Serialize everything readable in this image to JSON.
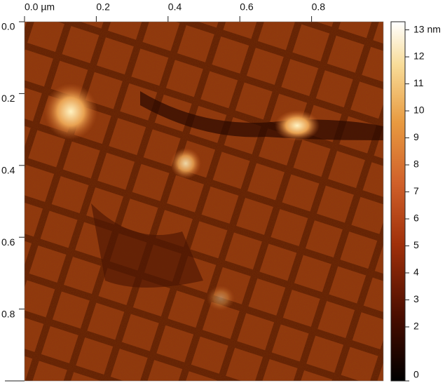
{
  "chart_data": {
    "type": "image",
    "xlim": [
      0,
      1
    ],
    "xticks": [
      {
        "value": 0,
        "label": "0.0 µm"
      },
      0.2,
      0.4,
      0.6,
      0.8
    ],
    "ylim": [
      0,
      1
    ],
    "yticks": [
      {
        "value": 0,
        "label": "0.0"
      },
      0.2,
      0.4,
      0.6,
      0.8
    ],
    "colorbar": {
      "lim": [
        0,
        13.3
      ],
      "ticks": [
        0,
        2,
        3,
        4,
        5,
        6,
        7,
        8,
        9,
        10,
        11,
        12,
        {
          "value": 13,
          "label": "13 nm"
        }
      ]
    }
  }
}
